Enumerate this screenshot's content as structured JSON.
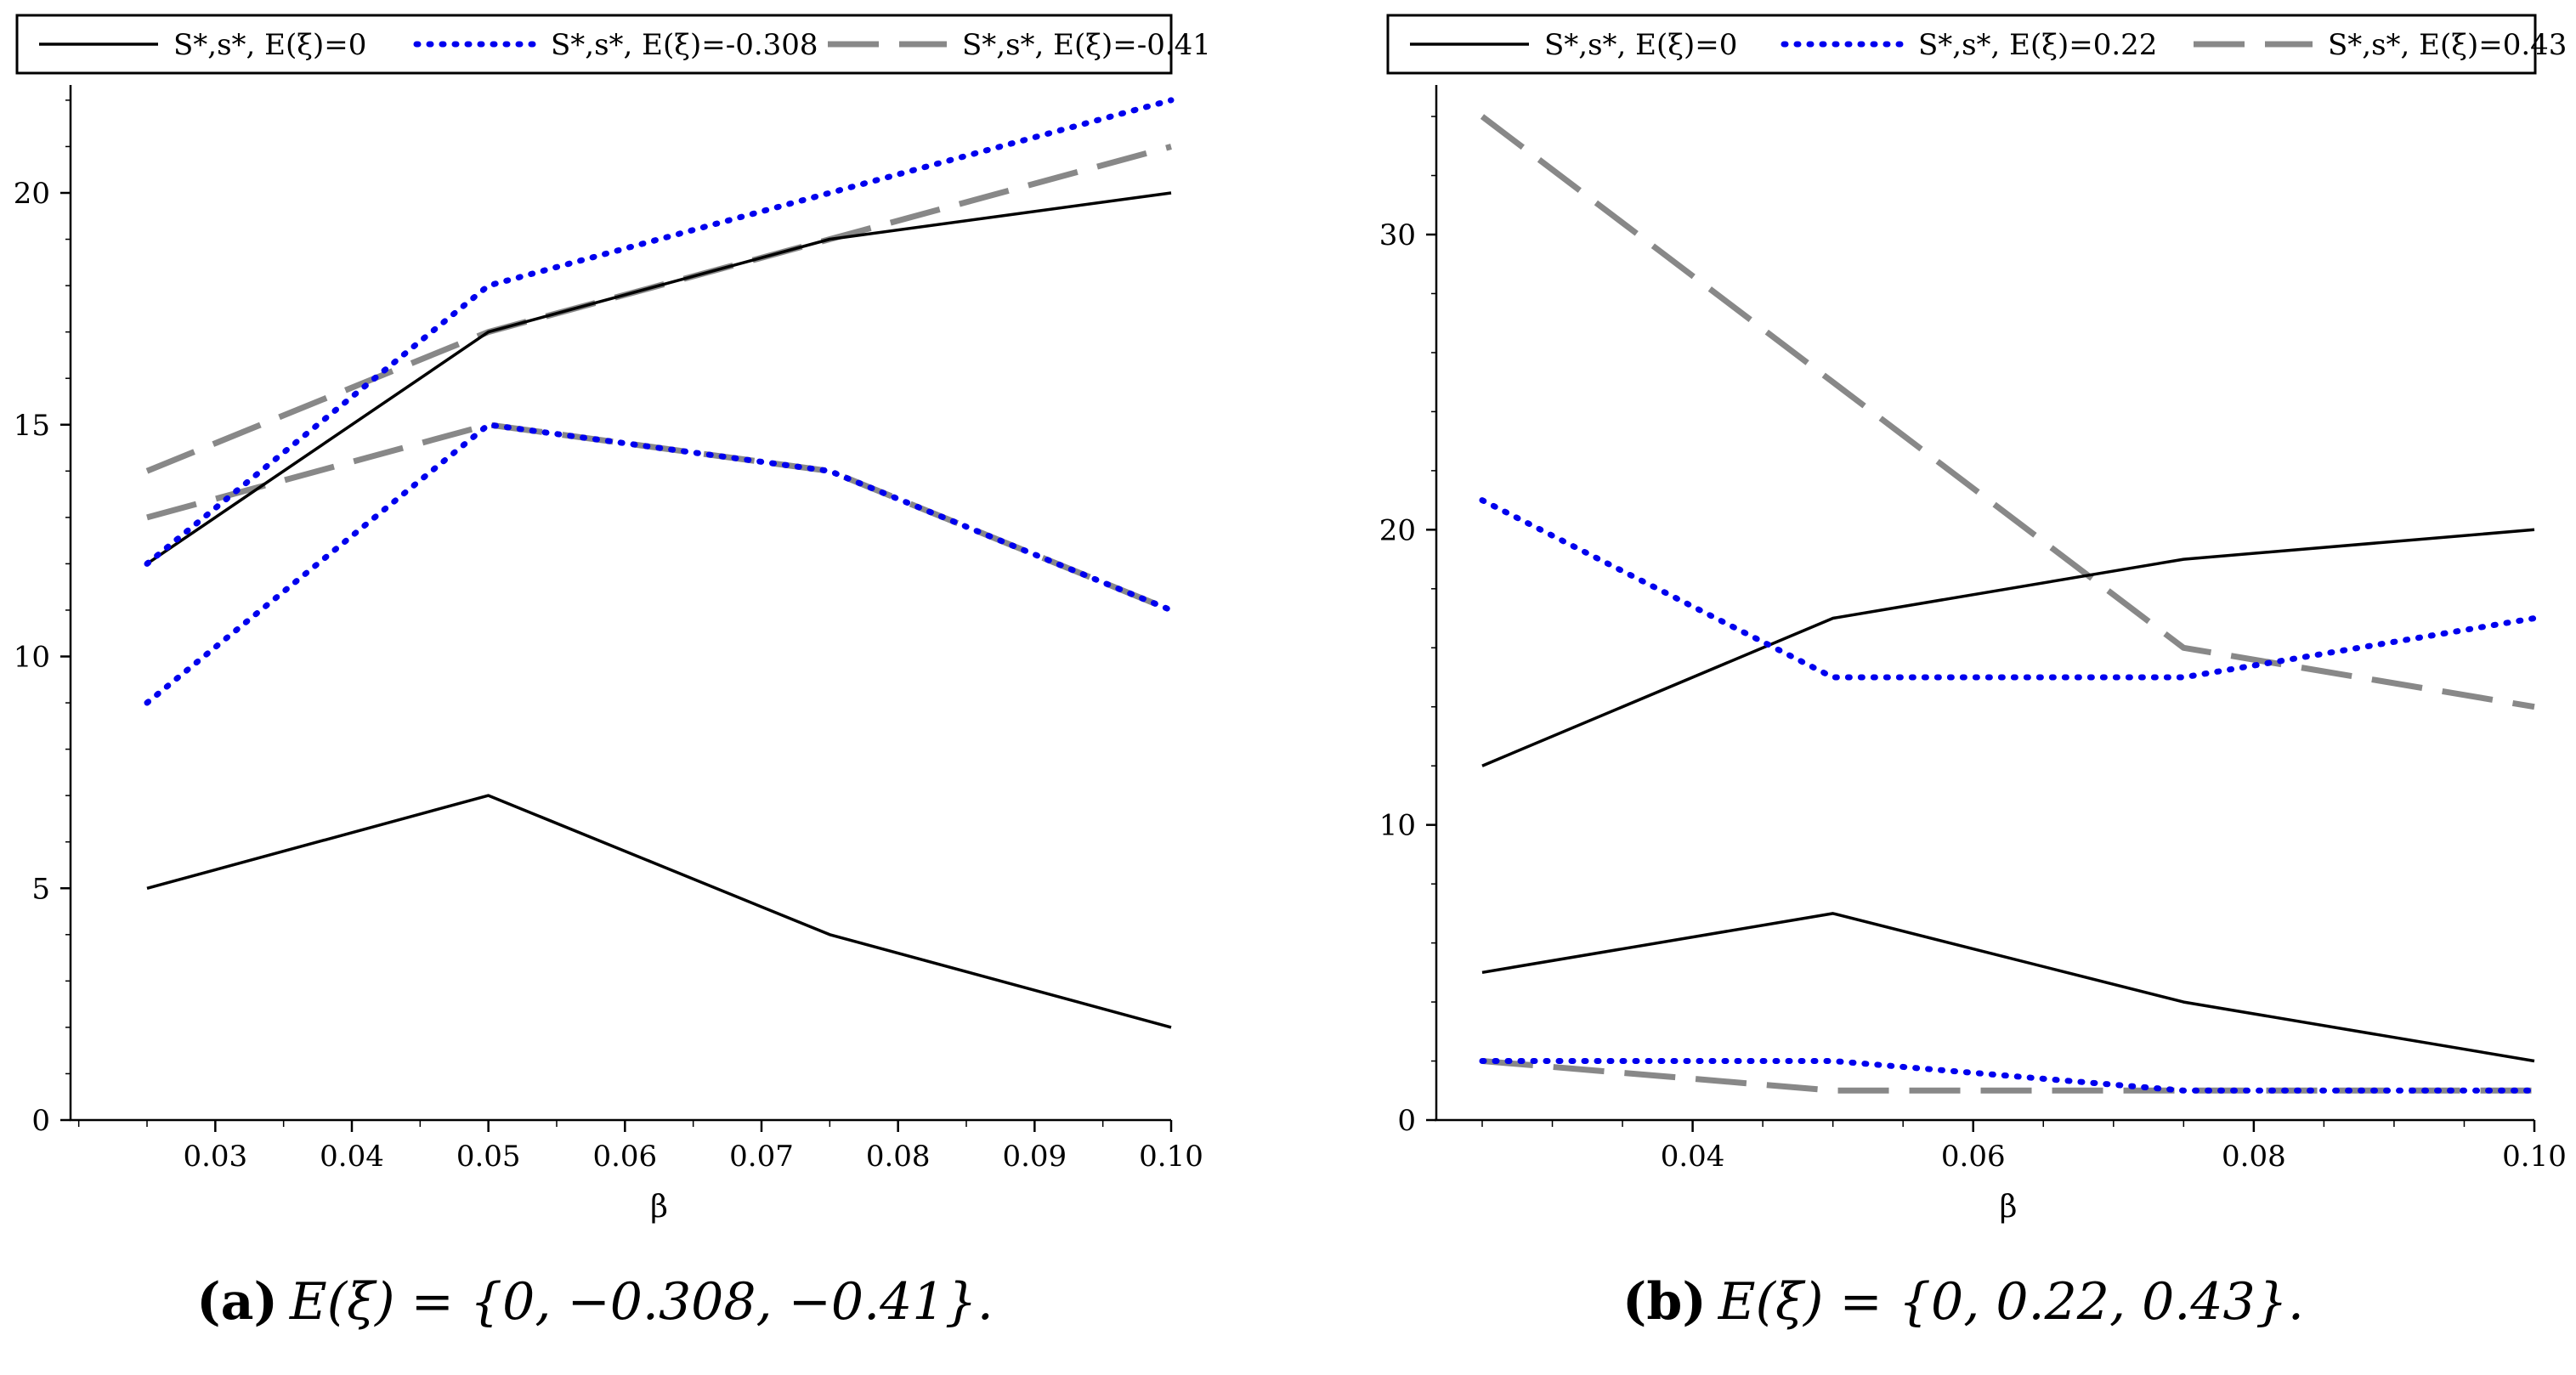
{
  "chart_data": [
    {
      "id": "a",
      "type": "line",
      "xlabel": "β",
      "ylabel": "",
      "xlim": [
        0.02,
        0.1
      ],
      "ylim": [
        0,
        22
      ],
      "xticks": [
        0.03,
        0.04,
        0.05,
        0.06,
        0.07,
        0.08,
        0.09,
        0.1
      ],
      "xtick_labels": [
        "0.03",
        "0.04",
        "0.05",
        "0.06",
        "0.07",
        "0.08",
        "0.09",
        "0.10"
      ],
      "yticks": [
        0,
        5,
        10,
        15,
        20
      ],
      "ytick_labels": [
        "0",
        "5",
        "10",
        "15",
        "20"
      ],
      "x": [
        0.025,
        0.05,
        0.075,
        0.1
      ],
      "legend": [
        {
          "label": "S*,s*, E(ξ)=0",
          "style": "solid",
          "color": "#000000"
        },
        {
          "label": "S*,s*, E(ξ)=-0.308",
          "style": "dotted",
          "color": "#0000ee"
        },
        {
          "label": "S*,s*, E(ξ)=-0.41",
          "style": "dashed",
          "color": "#888888"
        }
      ],
      "series": [
        {
          "name": "S*, E(ξ)=0",
          "style": "solid",
          "color": "#000000",
          "values": [
            12,
            17,
            19,
            20
          ]
        },
        {
          "name": "s*, E(ξ)=0",
          "style": "solid",
          "color": "#000000",
          "values": [
            5,
            7,
            4,
            2
          ]
        },
        {
          "name": "S*, E(ξ)=-0.308",
          "style": "dotted",
          "color": "#0000ee",
          "values": [
            12,
            18,
            20,
            22
          ]
        },
        {
          "name": "s*, E(ξ)=-0.308",
          "style": "dotted",
          "color": "#0000ee",
          "values": [
            9,
            15,
            14,
            11
          ]
        },
        {
          "name": "S*, E(ξ)=-0.41",
          "style": "dashed",
          "color": "#888888",
          "values": [
            14,
            17,
            19,
            21
          ]
        },
        {
          "name": "s*, E(ξ)=-0.41",
          "style": "dashed",
          "color": "#888888",
          "values": [
            13,
            15,
            14,
            11
          ]
        }
      ],
      "caption": {
        "label": "(a)",
        "text": "E(ξ) = {0, −0.308, −0.41}."
      }
    },
    {
      "id": "b",
      "type": "line",
      "xlabel": "β",
      "ylabel": "",
      "xlim": [
        0.02,
        0.1
      ],
      "ylim": [
        0,
        35
      ],
      "xticks": [
        0.04,
        0.06,
        0.08,
        0.1
      ],
      "xtick_labels": [
        "0.04",
        "0.06",
        "0.08",
        "0.10"
      ],
      "yticks": [
        0,
        10,
        20,
        30
      ],
      "ytick_labels": [
        "0",
        "10",
        "20",
        "30"
      ],
      "x": [
        0.025,
        0.05,
        0.075,
        0.1
      ],
      "legend": [
        {
          "label": "S*,s*, E(ξ)=0",
          "style": "solid",
          "color": "#000000"
        },
        {
          "label": "S*,s*, E(ξ)=0.22",
          "style": "dotted",
          "color": "#0000ee"
        },
        {
          "label": "S*,s*, E(ξ)=0.43",
          "style": "dashed",
          "color": "#888888"
        }
      ],
      "series": [
        {
          "name": "S*, E(ξ)=0",
          "style": "solid",
          "color": "#000000",
          "values": [
            12,
            17,
            19,
            20
          ]
        },
        {
          "name": "s*, E(ξ)=0",
          "style": "solid",
          "color": "#000000",
          "values": [
            5,
            7,
            4,
            2
          ]
        },
        {
          "name": "S*, E(ξ)=0.22",
          "style": "dotted",
          "color": "#0000ee",
          "values": [
            21,
            15,
            15,
            17
          ]
        },
        {
          "name": "s*, E(ξ)=0.22",
          "style": "dotted",
          "color": "#0000ee",
          "values": [
            2,
            2,
            1,
            1
          ]
        },
        {
          "name": "S*, E(ξ)=0.43",
          "style": "dashed",
          "color": "#888888",
          "values": [
            34,
            25,
            16,
            14
          ]
        },
        {
          "name": "s*, E(ξ)=0.43",
          "style": "dashed",
          "color": "#888888",
          "values": [
            2,
            1,
            1,
            1
          ]
        }
      ],
      "caption": {
        "label": "(b)",
        "text": "E(ξ) = {0, 0.22, 0.43}."
      }
    }
  ]
}
